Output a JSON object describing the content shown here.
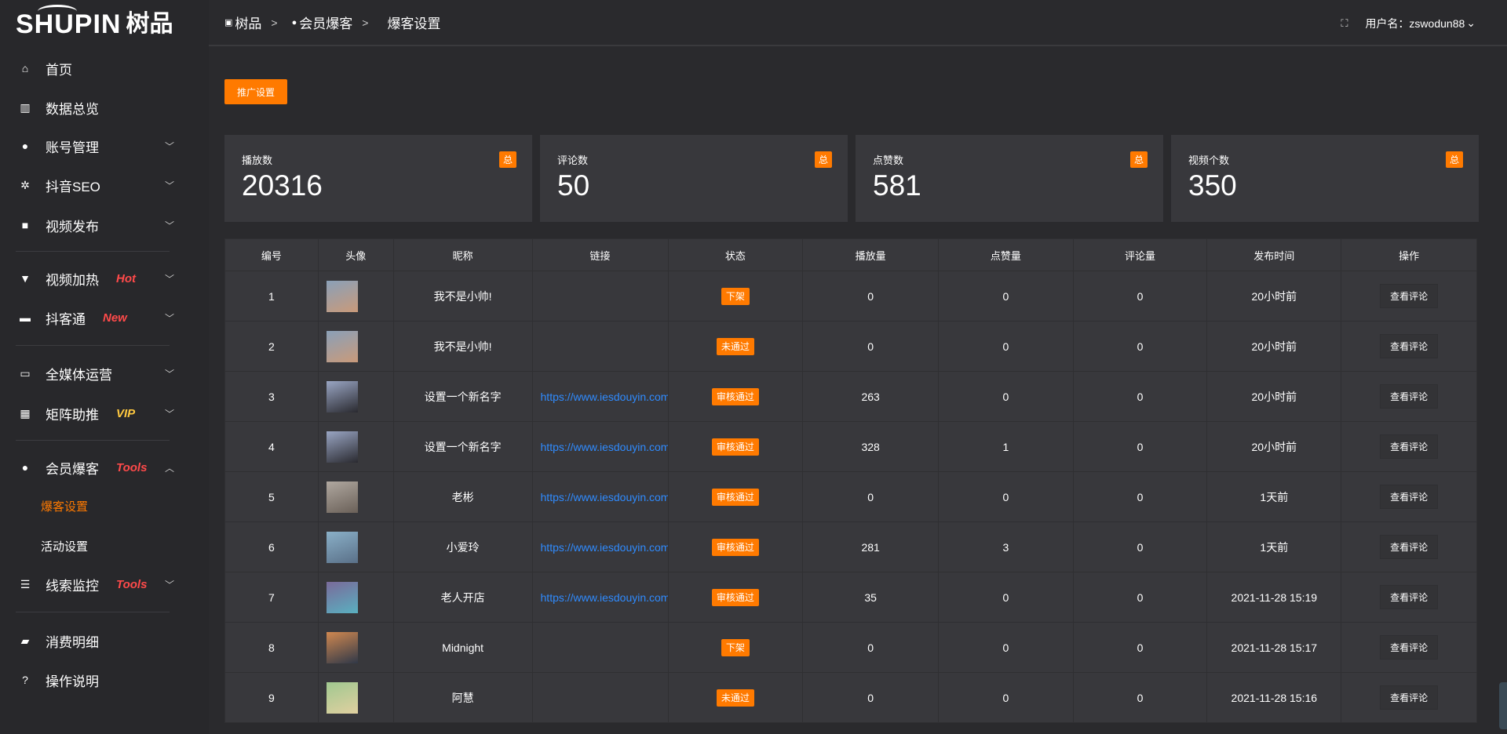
{
  "logo": {
    "en": "SHUPIN",
    "zh": "树品"
  },
  "sidebar": {
    "items": [
      {
        "label": "首页",
        "icon": "home-icon",
        "glyph": "⌂"
      },
      {
        "label": "数据总览",
        "icon": "bar-chart-icon",
        "glyph": "▥"
      },
      {
        "label": "账号管理",
        "icon": "user-icon",
        "glyph": "●",
        "chevron": "down"
      },
      {
        "label": "抖音SEO",
        "icon": "gear-icon",
        "glyph": "✲",
        "chevron": "down"
      },
      {
        "label": "视频发布",
        "icon": "camera-icon",
        "glyph": "■",
        "chevron": "down"
      },
      {
        "label": "视频加热",
        "icon": "signpost-icon",
        "glyph": "▼",
        "chevron": "down",
        "tag": "Hot",
        "tag_color": "#ff4a4a"
      },
      {
        "label": "抖客通",
        "icon": "chat-icon",
        "glyph": "▬",
        "chevron": "down",
        "tag": "New",
        "tag_color": "#ff4a4a"
      },
      {
        "label": "全媒体运营",
        "icon": "monitor-icon",
        "glyph": "▭",
        "chevron": "down"
      },
      {
        "label": "矩阵助推",
        "icon": "grid-icon",
        "glyph": "▦",
        "chevron": "down",
        "tag": "VIP",
        "tag_color": "#ffc940"
      },
      {
        "label": "会员爆客",
        "icon": "user-icon",
        "glyph": "●",
        "chevron": "up",
        "tag": "Tools",
        "tag_color": "#ff4a4a"
      },
      {
        "label": "爆客设置",
        "sub": true,
        "active": true
      },
      {
        "label": "活动设置",
        "sub": true
      },
      {
        "label": "线索监控",
        "icon": "sliders-icon",
        "glyph": "☰",
        "chevron": "down",
        "tag": "Tools",
        "tag_color": "#ff4a4a"
      },
      {
        "label": "消费明细",
        "icon": "wallet-icon",
        "glyph": "▰"
      },
      {
        "label": "操作说明",
        "icon": "help-icon",
        "glyph": "?"
      }
    ]
  },
  "breadcrumb": [
    "树品",
    "会员爆客",
    "爆客设置"
  ],
  "header": {
    "user_label": "用户名：zswodun88"
  },
  "promo_button": "推广设置",
  "stats": [
    {
      "label": "播放数",
      "value": "20316",
      "badge": "总"
    },
    {
      "label": "评论数",
      "value": "50",
      "badge": "总"
    },
    {
      "label": "点赞数",
      "value": "581",
      "badge": "总"
    },
    {
      "label": "视频个数",
      "value": "350",
      "badge": "总"
    }
  ],
  "table": {
    "columns": [
      "编号",
      "头像",
      "昵称",
      "链接",
      "状态",
      "播放量",
      "点赞量",
      "评论量",
      "发布时间",
      "操作"
    ],
    "rows": [
      {
        "id": "1",
        "name": "我不是小帅!",
        "link": "",
        "status": "下架",
        "plays": "0",
        "likes": "0",
        "comments": "0",
        "time": "20小时前",
        "action": "查看评论",
        "avatar": [
          "#8aa0b8",
          "#c99a7a"
        ]
      },
      {
        "id": "2",
        "name": "我不是小帅!",
        "link": "",
        "status": "未通过",
        "plays": "0",
        "likes": "0",
        "comments": "0",
        "time": "20小时前",
        "action": "查看评论",
        "avatar": [
          "#8aa0b8",
          "#c99a7a"
        ]
      },
      {
        "id": "3",
        "name": "设置一个新名字",
        "link": "https://www.iesdouyin.com",
        "status": "审核通过",
        "plays": "263",
        "likes": "0",
        "comments": "0",
        "time": "20小时前",
        "action": "查看评论",
        "avatar": [
          "#9aa6c4",
          "#2a2a30"
        ]
      },
      {
        "id": "4",
        "name": "设置一个新名字",
        "link": "https://www.iesdouyin.com",
        "status": "审核通过",
        "plays": "328",
        "likes": "1",
        "comments": "0",
        "time": "20小时前",
        "action": "查看评论",
        "avatar": [
          "#9aa6c4",
          "#2a2a30"
        ]
      },
      {
        "id": "5",
        "name": "老彬",
        "link": "https://www.iesdouyin.com",
        "status": "审核通过",
        "plays": "0",
        "likes": "0",
        "comments": "0",
        "time": "1天前",
        "action": "查看评论",
        "avatar": [
          "#b0a8a0",
          "#6a6058"
        ]
      },
      {
        "id": "6",
        "name": "小爱玲",
        "link": "https://www.iesdouyin.com",
        "status": "审核通过",
        "plays": "281",
        "likes": "3",
        "comments": "0",
        "time": "1天前",
        "action": "查看评论",
        "avatar": [
          "#8ab0c8",
          "#5a7088"
        ]
      },
      {
        "id": "7",
        "name": "老人开店",
        "link": "https://www.iesdouyin.com",
        "status": "审核通过",
        "plays": "35",
        "likes": "0",
        "comments": "0",
        "time": "2021-11-28 15:19",
        "action": "查看评论",
        "avatar": [
          "#7a6a9a",
          "#5ab0c0"
        ]
      },
      {
        "id": "8",
        "name": "Midnight",
        "link": "",
        "status": "下架",
        "plays": "0",
        "likes": "0",
        "comments": "0",
        "time": "2021-11-28 15:17",
        "action": "查看评论",
        "avatar": [
          "#d08850",
          "#303848"
        ]
      },
      {
        "id": "9",
        "name": "阿慧",
        "link": "",
        "status": "未通过",
        "plays": "0",
        "likes": "0",
        "comments": "0",
        "time": "2021-11-28 15:16",
        "action": "查看评论",
        "avatar": [
          "#a0c890",
          "#e0d0a0"
        ]
      }
    ]
  },
  "colors": {
    "accent": "#ff7a00",
    "link": "#2f8bff"
  }
}
